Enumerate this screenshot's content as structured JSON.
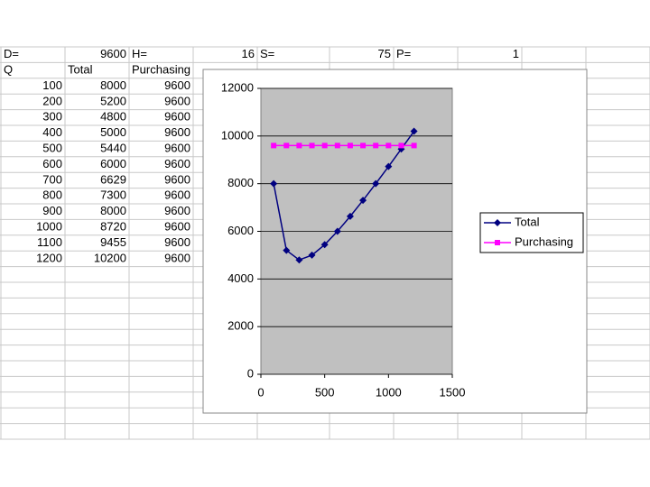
{
  "sheet": {
    "rows": [
      [
        "D=",
        "9600",
        "H=",
        "16",
        "S=",
        "75",
        "P=",
        "1"
      ],
      [
        "Q",
        "Total",
        "Purchasing"
      ],
      [
        "100",
        "8000",
        "9600"
      ],
      [
        "200",
        "5200",
        "9600"
      ],
      [
        "300",
        "4800",
        "9600"
      ],
      [
        "400",
        "5000",
        "9600"
      ],
      [
        "500",
        "5440",
        "9600"
      ],
      [
        "600",
        "6000",
        "9600"
      ],
      [
        "700",
        "6629",
        "9600"
      ],
      [
        "800",
        "7300",
        "9600"
      ],
      [
        "900",
        "8000",
        "9600"
      ],
      [
        "1000",
        "8720",
        "9600"
      ],
      [
        "1100",
        "9455",
        "9600"
      ],
      [
        "1200",
        "10200",
        "9600"
      ]
    ]
  },
  "chart_data": {
    "type": "line",
    "x": [
      100,
      200,
      300,
      400,
      500,
      600,
      700,
      800,
      900,
      1000,
      1100,
      1200
    ],
    "series": [
      {
        "name": "Total",
        "color": "#000080",
        "marker": "diamond",
        "values": [
          8000,
          5200,
          4800,
          5000,
          5440,
          6000,
          6629,
          7300,
          8000,
          8720,
          9455,
          10200
        ]
      },
      {
        "name": "Purchasing",
        "color": "#ff00ff",
        "marker": "square",
        "values": [
          9600,
          9600,
          9600,
          9600,
          9600,
          9600,
          9600,
          9600,
          9600,
          9600,
          9600,
          9600
        ]
      }
    ],
    "xlim": [
      0,
      1500
    ],
    "xticks": [
      0,
      500,
      1000,
      1500
    ],
    "ylim": [
      0,
      12000
    ],
    "yticks": [
      0,
      2000,
      4000,
      6000,
      8000,
      10000,
      12000
    ],
    "grid": true,
    "legend": "right"
  }
}
